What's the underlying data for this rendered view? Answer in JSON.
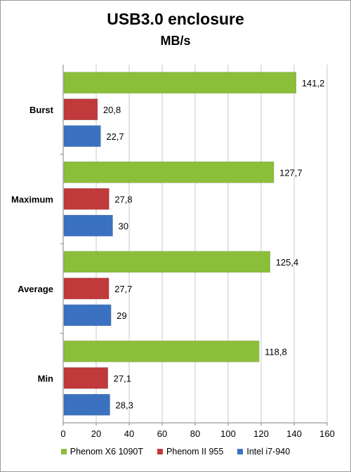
{
  "chart_data": {
    "type": "bar",
    "orientation": "horizontal",
    "title": "USB3.0 enclosure",
    "subtitle": "MB/s",
    "categories": [
      "Burst",
      "Maximum",
      "Average",
      "Min"
    ],
    "series": [
      {
        "name": "Phenom X6 1090T",
        "color": "#8bbf3a",
        "values": [
          141.2,
          127.7,
          125.4,
          118.8
        ],
        "labels": [
          "141,2",
          "127,7",
          "125,4",
          "118,8"
        ]
      },
      {
        "name": "Phenom II 955",
        "color": "#c0393b",
        "values": [
          20.8,
          27.8,
          27.7,
          27.1
        ],
        "labels": [
          "20,8",
          "27,8",
          "27,7",
          "27,1"
        ]
      },
      {
        "name": "Intel i7-940",
        "color": "#3a72c1",
        "values": [
          22.7,
          30,
          29,
          28.3
        ],
        "labels": [
          "22,7",
          "30",
          "29",
          "28,3"
        ]
      }
    ],
    "xlim": [
      0,
      160
    ],
    "xticks": [
      0,
      20,
      40,
      60,
      80,
      100,
      120,
      140,
      160
    ],
    "grid": "vertical",
    "legend_position": "bottom"
  }
}
